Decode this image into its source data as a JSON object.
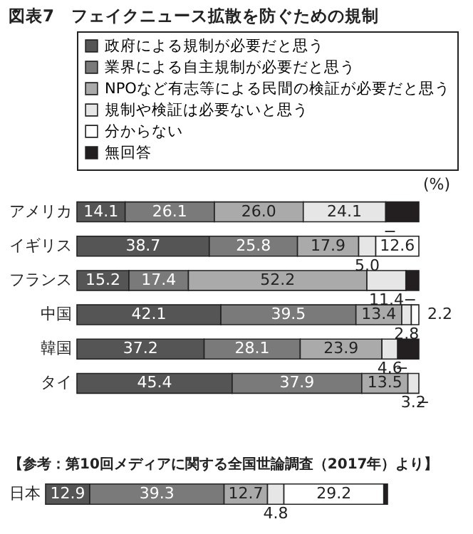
{
  "chart_data": [
    {
      "type": "bar",
      "orientation": "horizontal",
      "stacked": true,
      "title": "図表7　フェイクニュース拡散を防ぐための規制",
      "categories": [
        "アメリカ",
        "イギリス",
        "フランス",
        "中国",
        "韓国",
        "タイ"
      ],
      "legend": "top",
      "annotations": [
        "(%)"
      ],
      "series": [
        {
          "name": "政府による規制が必要だと思う",
          "color": "#555555",
          "values": [
            14.1,
            38.7,
            15.2,
            42.1,
            37.2,
            45.4
          ],
          "value_labels": [
            "14.1",
            "38.7",
            "15.2",
            "42.1",
            "37.2",
            "45.4"
          ]
        },
        {
          "name": "業界による自主規制が必要だと思う",
          "color": "#7a7a7a",
          "values": [
            26.1,
            25.8,
            17.4,
            39.5,
            28.1,
            37.9
          ],
          "value_labels": [
            "26.1",
            "25.8",
            "17.4",
            "39.5",
            "28.1",
            "37.9"
          ]
        },
        {
          "name": "NPOなど有志等による民間の検証が必要だと思う",
          "color": "#aaaaaa",
          "values": [
            26.0,
            17.9,
            52.2,
            13.4,
            23.9,
            13.5
          ],
          "value_labels": [
            "26.0",
            "17.9",
            "52.2",
            "13.4",
            "23.9",
            "13.5"
          ]
        },
        {
          "name": "規制や検証は必要ないと思う",
          "color": "#e6e6e6",
          "values": [
            24.1,
            5.0,
            11.4,
            2.8,
            4.6,
            3.2
          ],
          "value_labels": [
            "24.1",
            "5.0",
            "11.4",
            "2.8",
            "4.6",
            "3.2"
          ]
        },
        {
          "name": "分からない",
          "color": "#ffffff",
          "values": [
            0,
            12.6,
            0,
            2.2,
            0,
            0
          ],
          "value_labels": [
            "−",
            "12.6",
            "−",
            "2.2",
            "−",
            "−"
          ]
        },
        {
          "name": "無回答",
          "color": "#231f20",
          "values": [
            9.7,
            0,
            3.8,
            0,
            6.2,
            0
          ]
        }
      ]
    },
    {
      "type": "bar",
      "orientation": "horizontal",
      "stacked": true,
      "title": "【参考：第10回メディアに関する全国世論調査（2017年）より】",
      "categories": [
        "日本"
      ],
      "series": [
        {
          "color": "#555555",
          "values": [
            12.9
          ],
          "value_labels": [
            "12.9"
          ]
        },
        {
          "color": "#7a7a7a",
          "values": [
            39.3
          ],
          "value_labels": [
            "39.3"
          ]
        },
        {
          "color": "#aaaaaa",
          "values": [
            12.7
          ],
          "value_labels": [
            "12.7"
          ]
        },
        {
          "color": "#e6e6e6",
          "values": [
            4.8
          ],
          "value_labels": [
            "4.8"
          ]
        },
        {
          "color": "#ffffff",
          "values": [
            29.2
          ],
          "value_labels": [
            "29.2"
          ]
        },
        {
          "color": "#231f20",
          "values": [
            1.1
          ]
        }
      ]
    }
  ]
}
